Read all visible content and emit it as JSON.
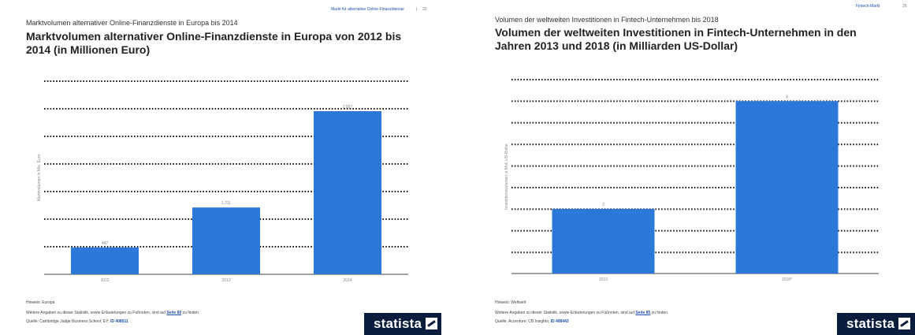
{
  "left": {
    "header_link": "Markt für alternative Online-Finanzdienste",
    "header_sep": "|",
    "page_number": "20",
    "subtitle": "Marktvolumen alternativer Online-Finanzdienste in Europa bis 2014",
    "title_line1": "Marktvolumen alternativer Online-Finanzdienste in Europa von 2012 bis",
    "title_line2": "2014 (in Millionen Euro)",
    "footer_hint": "Hinweis: Europa",
    "footer_more_pre": "Weitere Angaben zu dieser Statistik, sowie Erläuterungen zu Fußnoten, sind auf",
    "footer_more_link": "Seite 80",
    "footer_more_post": "zu finden.",
    "footer_source_pre": "Quelle: Cambridge Judge Business School; EY;",
    "footer_source_id": "ID 408511",
    "logo": "statista"
  },
  "right": {
    "header_link": "Fintech-Markt",
    "page_number": "26",
    "subtitle": "Volumen der weltweiten Investitionen in Fintech-Unternehmen bis 2018",
    "title_line1": "Volumen der weltweiten Investitionen in Fintech-Unternehmen in den",
    "title_line2": "Jahren 2013 und 2018 (in Milliarden US-Dollar)",
    "footer_hint": "Hinweis: Weltweit",
    "footer_more_pre": "Weitere Angaben zu dieser Statistik, sowie Erläuterungen zu Fußnoten, sind auf",
    "footer_more_link": "Seite 85",
    "footer_more_post": "zu finden.",
    "footer_source_pre": "Quelle: Accenture; CB Insights;",
    "footer_source_id": "ID 408443",
    "logo": "statista"
  },
  "colors": {
    "bar": "#2b78d9",
    "grid": "#1a1a1a",
    "logo_bg": "#0a1d3c",
    "link": "#1f4fb4"
  },
  "chart_data": [
    {
      "type": "bar",
      "title": "Marktvolumen alternativer Online-Finanzdienste in Europa von 2012 bis 2014 (in Millionen Euro)",
      "categories": [
        "2012",
        "2013",
        "2014"
      ],
      "values": [
        487,
        1211,
        2957
      ],
      "value_labels": [
        "487",
        "1.211",
        "2.957"
      ],
      "ylabel": "Marktvolumen in Mio. Euro",
      "xlabel": "",
      "ylim": [
        0,
        3500
      ],
      "grid": true
    },
    {
      "type": "bar",
      "title": "Volumen der weltweiten Investitionen in Fintech-Unternehmen in den Jahren 2013 und 2018 (in Milliarden US-Dollar)",
      "categories": [
        "2013",
        "2018*"
      ],
      "values": [
        3,
        8
      ],
      "value_labels": [
        "3",
        "8"
      ],
      "ylabel": "Investitionsvolumen in Mrd. US-Dollar",
      "xlabel": "",
      "ylim": [
        0,
        9
      ],
      "grid": true
    }
  ]
}
